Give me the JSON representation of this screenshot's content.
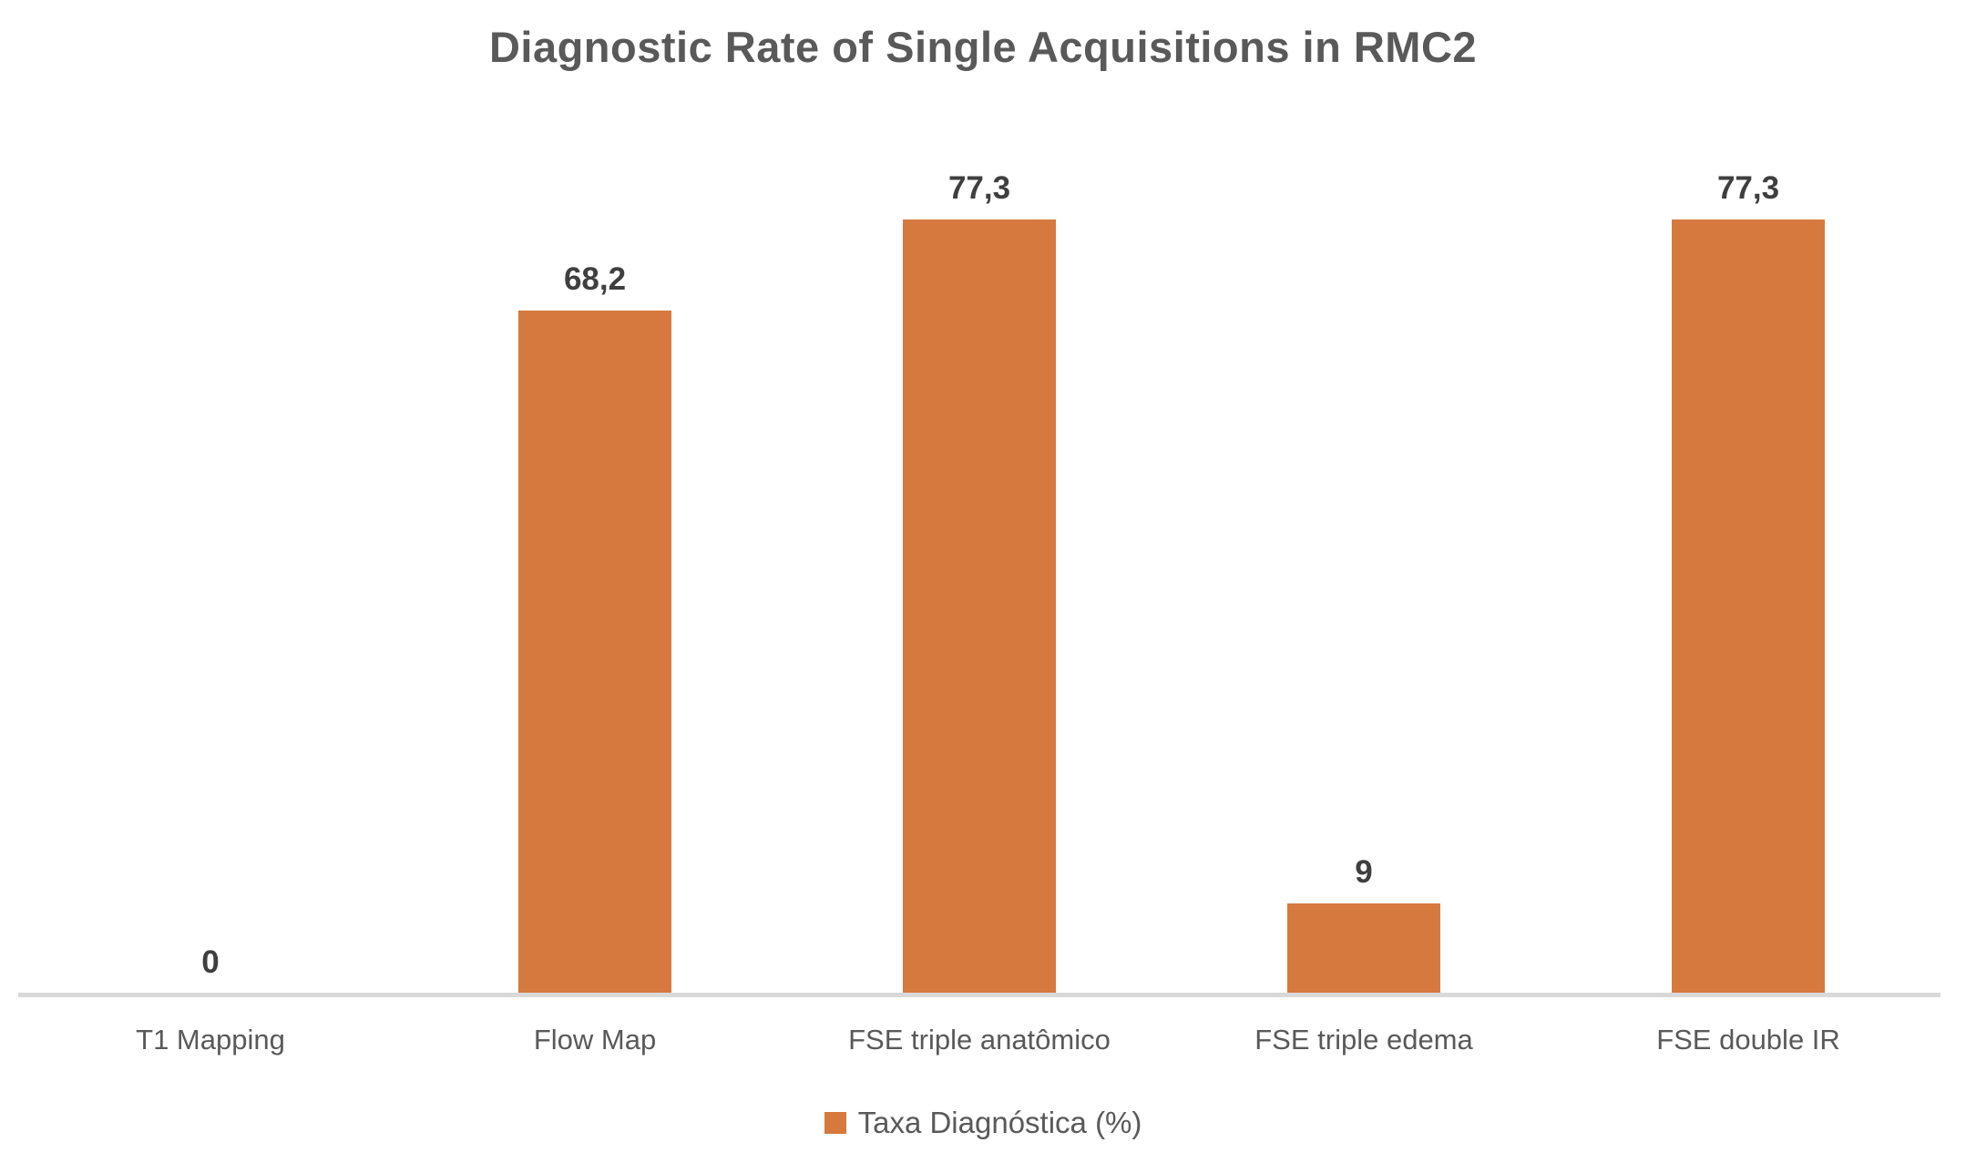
{
  "chart_data": {
    "type": "bar",
    "title": "Diagnostic Rate of Single Acquisitions in RMC2",
    "categories": [
      "T1 Mapping",
      "Flow Map",
      "FSE triple anatômico",
      "FSE triple edema",
      "FSE double IR"
    ],
    "values": [
      0,
      68.2,
      77.3,
      9,
      77.3
    ],
    "value_labels": [
      "0",
      "68,2",
      "77,3",
      "9",
      "77,3"
    ],
    "series": [
      {
        "name": "Taxa Diagnóstica (%)",
        "values": [
          0,
          68.2,
          77.3,
          9,
          77.3
        ]
      }
    ],
    "legend": {
      "label": "Taxa Diagnóstica (%)",
      "position": "bottom"
    },
    "xlabel": "",
    "ylabel": "",
    "ylim": [
      0,
      100
    ],
    "grid": false,
    "y_axis_visible": false,
    "decimal_separator": ",",
    "colors": {
      "bar": "#D6793F",
      "title_text": "#595959",
      "value_label_text": "#3F3F3F",
      "category_label_text": "#595959",
      "axis_line": "#D9D9D9",
      "background": "#FFFFFF"
    }
  }
}
